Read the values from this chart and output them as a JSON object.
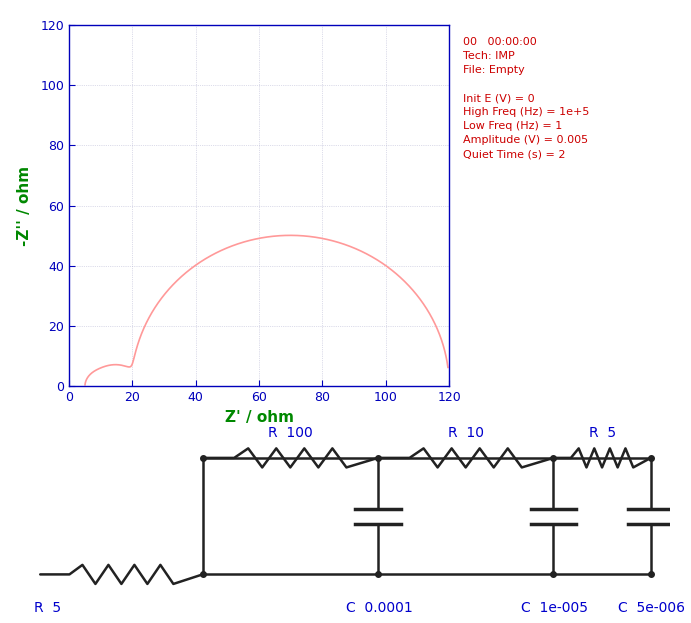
{
  "plot_bg": "#ffffff",
  "plot_area_bg": "#ffffff",
  "grid_color": "#aaaacc",
  "grid_style": "dotted",
  "curve_color": "#ff9999",
  "axis_color": "#0000bb",
  "tick_color": "#0000bb",
  "ylabel": "-Z'' / ohm",
  "xlabel": "Z' / ohm",
  "ylabel_color": "#008800",
  "xlabel_color": "#008800",
  "xlim": [
    0,
    120
  ],
  "ylim": [
    0,
    120
  ],
  "xticks": [
    0,
    20,
    40,
    60,
    80,
    100,
    120
  ],
  "yticks": [
    0,
    20,
    40,
    60,
    80,
    100,
    120
  ],
  "info_line1": "00   00:00:00",
  "info_line2": "Tech: IMP",
  "info_line3": "File: Empty",
  "info_line4": "",
  "info_line5": "Init E (V) = 0",
  "info_line6": "High Freq (Hz) = 1e+5",
  "info_line7": "Low Freq (Hz) = 1",
  "info_line8": "Amplitude (V) = 0.005",
  "info_line9": "Quiet Time (s) = 2",
  "info_color": "#cc0000",
  "circuit_blue": "#0000cc",
  "circuit_dark": "#222222",
  "R5_label": "R  5",
  "R100_label": "R  100",
  "R10_label": "R  10",
  "R5b_label": "R  5",
  "C0001_label": "C  0.0001",
  "C1e5_label": "C  1e-005",
  "C5e6_label": "C  5e-006"
}
